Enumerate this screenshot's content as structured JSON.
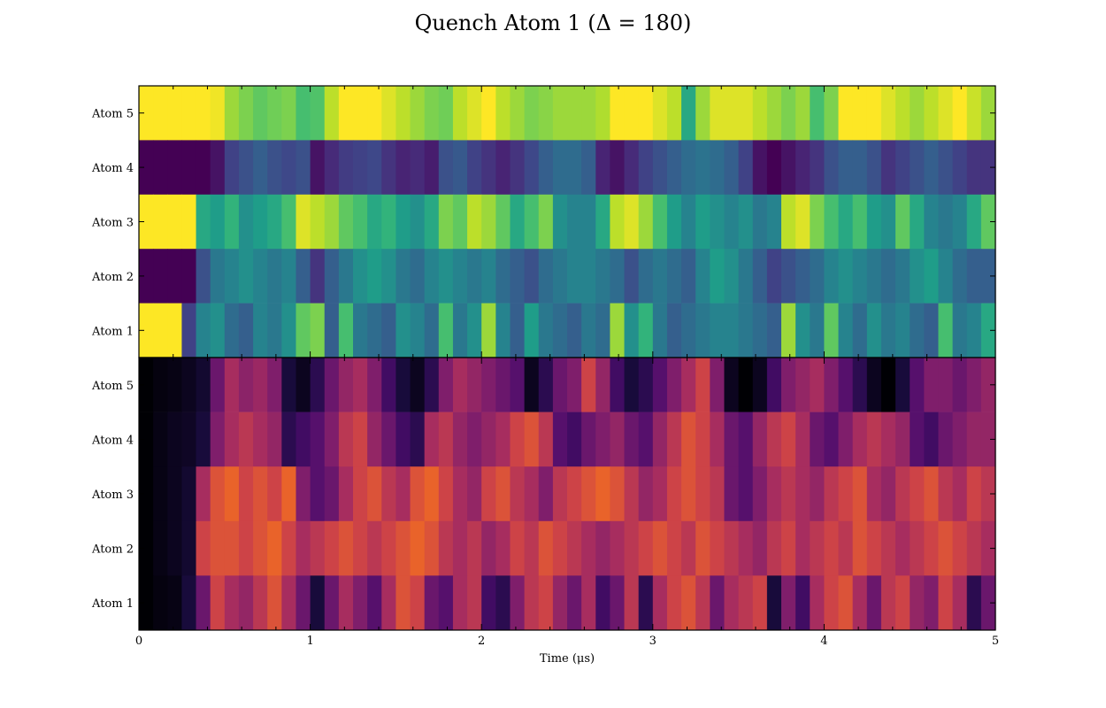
{
  "chart_data": {
    "type": "heatmap",
    "title": "Quench Atom 1 (Δ = 180)",
    "xlabel": "Time (μs)",
    "xlim": [
      0,
      5
    ],
    "xticks": [
      "0",
      "1",
      "2",
      "3",
      "4",
      "5"
    ],
    "panels": [
      {
        "name": "top",
        "colormap": "viridis",
        "rows": [
          {
            "label": "Atom 5",
            "values": [
              1.0,
              1.0,
              1.0,
              1.0,
              1.0,
              0.98,
              0.85,
              0.8,
              0.75,
              0.78,
              0.8,
              0.7,
              0.72,
              0.9,
              1.0,
              1.0,
              1.0,
              0.95,
              0.9,
              0.85,
              0.8,
              0.78,
              0.9,
              0.95,
              1.0,
              0.9,
              0.85,
              0.8,
              0.82,
              0.85,
              0.85,
              0.85,
              0.88,
              1.0,
              1.0,
              1.0,
              0.95,
              0.9,
              0.6,
              0.85,
              0.95,
              0.95,
              0.95,
              0.9,
              0.85,
              0.8,
              0.85,
              0.7,
              0.8,
              1.0,
              1.0,
              1.0,
              0.95,
              0.9,
              0.85,
              0.9,
              0.95,
              1.0,
              0.92,
              0.85
            ]
          },
          {
            "label": "Atom 4",
            "values": [
              0.0,
              0.0,
              0.0,
              0.0,
              0.0,
              0.05,
              0.2,
              0.25,
              0.3,
              0.25,
              0.22,
              0.25,
              0.05,
              0.12,
              0.18,
              0.2,
              0.22,
              0.15,
              0.1,
              0.12,
              0.08,
              0.25,
              0.28,
              0.2,
              0.15,
              0.1,
              0.15,
              0.22,
              0.3,
              0.35,
              0.35,
              0.3,
              0.1,
              0.05,
              0.12,
              0.2,
              0.25,
              0.3,
              0.35,
              0.38,
              0.35,
              0.3,
              0.2,
              0.05,
              0.0,
              0.05,
              0.1,
              0.15,
              0.25,
              0.3,
              0.3,
              0.25,
              0.15,
              0.2,
              0.25,
              0.3,
              0.25,
              0.2,
              0.15,
              0.15
            ]
          },
          {
            "label": "Atom 3",
            "values": [
              1.0,
              1.0,
              1.0,
              1.0,
              0.6,
              0.55,
              0.65,
              0.5,
              0.55,
              0.6,
              0.7,
              0.95,
              0.9,
              0.85,
              0.75,
              0.7,
              0.6,
              0.65,
              0.55,
              0.5,
              0.6,
              0.8,
              0.75,
              0.9,
              0.85,
              0.75,
              0.6,
              0.7,
              0.8,
              0.5,
              0.45,
              0.45,
              0.6,
              0.9,
              0.95,
              0.85,
              0.7,
              0.55,
              0.45,
              0.55,
              0.5,
              0.45,
              0.5,
              0.4,
              0.45,
              0.9,
              0.95,
              0.8,
              0.7,
              0.6,
              0.7,
              0.55,
              0.5,
              0.75,
              0.6,
              0.45,
              0.4,
              0.45,
              0.6,
              0.75
            ]
          },
          {
            "label": "Atom 2",
            "values": [
              0.0,
              0.0,
              0.0,
              0.0,
              0.25,
              0.4,
              0.45,
              0.5,
              0.45,
              0.4,
              0.45,
              0.3,
              0.15,
              0.3,
              0.4,
              0.5,
              0.55,
              0.5,
              0.4,
              0.35,
              0.45,
              0.5,
              0.45,
              0.4,
              0.45,
              0.35,
              0.3,
              0.25,
              0.35,
              0.4,
              0.45,
              0.45,
              0.4,
              0.35,
              0.25,
              0.35,
              0.4,
              0.35,
              0.3,
              0.45,
              0.55,
              0.5,
              0.4,
              0.3,
              0.2,
              0.25,
              0.3,
              0.35,
              0.45,
              0.5,
              0.45,
              0.4,
              0.35,
              0.4,
              0.5,
              0.55,
              0.45,
              0.35,
              0.3,
              0.3
            ]
          },
          {
            "label": "Atom 1",
            "values": [
              1.0,
              1.0,
              1.0,
              0.2,
              0.45,
              0.5,
              0.35,
              0.3,
              0.45,
              0.4,
              0.5,
              0.75,
              0.8,
              0.3,
              0.7,
              0.4,
              0.35,
              0.3,
              0.5,
              0.45,
              0.35,
              0.7,
              0.4,
              0.5,
              0.85,
              0.45,
              0.3,
              0.55,
              0.4,
              0.35,
              0.3,
              0.4,
              0.35,
              0.85,
              0.5,
              0.65,
              0.4,
              0.3,
              0.35,
              0.4,
              0.45,
              0.45,
              0.4,
              0.35,
              0.3,
              0.85,
              0.5,
              0.4,
              0.75,
              0.45,
              0.35,
              0.5,
              0.4,
              0.45,
              0.35,
              0.3,
              0.7,
              0.4,
              0.45,
              0.6
            ]
          }
        ]
      },
      {
        "name": "bottom",
        "colormap": "inferno",
        "rows": [
          {
            "label": "Atom 5",
            "values": [
              0.0,
              0.02,
              0.03,
              0.05,
              0.08,
              0.3,
              0.45,
              0.38,
              0.42,
              0.35,
              0.1,
              0.05,
              0.15,
              0.3,
              0.4,
              0.45,
              0.35,
              0.2,
              0.1,
              0.05,
              0.15,
              0.35,
              0.45,
              0.4,
              0.35,
              0.3,
              0.25,
              0.05,
              0.15,
              0.3,
              0.35,
              0.55,
              0.4,
              0.2,
              0.1,
              0.15,
              0.25,
              0.35,
              0.45,
              0.55,
              0.35,
              0.05,
              0.0,
              0.05,
              0.2,
              0.35,
              0.4,
              0.45,
              0.35,
              0.25,
              0.15,
              0.05,
              0.0,
              0.1,
              0.25,
              0.35,
              0.35,
              0.3,
              0.35,
              0.4
            ]
          },
          {
            "label": "Atom 4",
            "values": [
              0.0,
              0.03,
              0.05,
              0.06,
              0.1,
              0.35,
              0.45,
              0.5,
              0.45,
              0.4,
              0.15,
              0.2,
              0.25,
              0.35,
              0.5,
              0.55,
              0.4,
              0.3,
              0.2,
              0.15,
              0.45,
              0.5,
              0.4,
              0.35,
              0.4,
              0.45,
              0.55,
              0.6,
              0.5,
              0.25,
              0.2,
              0.3,
              0.35,
              0.4,
              0.3,
              0.25,
              0.4,
              0.5,
              0.6,
              0.55,
              0.45,
              0.3,
              0.25,
              0.4,
              0.5,
              0.55,
              0.45,
              0.3,
              0.25,
              0.35,
              0.45,
              0.5,
              0.45,
              0.4,
              0.25,
              0.2,
              0.3,
              0.35,
              0.4,
              0.4
            ]
          },
          {
            "label": "Atom 3",
            "values": [
              0.0,
              0.03,
              0.05,
              0.08,
              0.45,
              0.6,
              0.65,
              0.55,
              0.6,
              0.55,
              0.65,
              0.35,
              0.25,
              0.3,
              0.45,
              0.55,
              0.6,
              0.5,
              0.45,
              0.6,
              0.65,
              0.55,
              0.45,
              0.4,
              0.55,
              0.6,
              0.5,
              0.45,
              0.35,
              0.5,
              0.55,
              0.6,
              0.65,
              0.6,
              0.5,
              0.4,
              0.45,
              0.55,
              0.6,
              0.55,
              0.5,
              0.3,
              0.25,
              0.35,
              0.45,
              0.5,
              0.45,
              0.4,
              0.5,
              0.55,
              0.6,
              0.45,
              0.4,
              0.5,
              0.55,
              0.6,
              0.5,
              0.45,
              0.55,
              0.5
            ]
          },
          {
            "label": "Atom 2",
            "values": [
              0.0,
              0.03,
              0.05,
              0.08,
              0.55,
              0.6,
              0.6,
              0.55,
              0.6,
              0.65,
              0.55,
              0.45,
              0.5,
              0.55,
              0.6,
              0.55,
              0.5,
              0.55,
              0.6,
              0.65,
              0.6,
              0.5,
              0.45,
              0.5,
              0.4,
              0.45,
              0.55,
              0.5,
              0.6,
              0.55,
              0.5,
              0.45,
              0.4,
              0.45,
              0.5,
              0.55,
              0.6,
              0.55,
              0.5,
              0.6,
              0.55,
              0.5,
              0.45,
              0.4,
              0.5,
              0.55,
              0.45,
              0.5,
              0.55,
              0.5,
              0.6,
              0.55,
              0.5,
              0.45,
              0.5,
              0.55,
              0.6,
              0.55,
              0.5,
              0.45
            ]
          },
          {
            "label": "Atom 1",
            "values": [
              0.0,
              0.02,
              0.03,
              0.1,
              0.3,
              0.55,
              0.45,
              0.4,
              0.5,
              0.6,
              0.45,
              0.3,
              0.1,
              0.3,
              0.45,
              0.35,
              0.25,
              0.45,
              0.6,
              0.55,
              0.3,
              0.25,
              0.45,
              0.5,
              0.2,
              0.15,
              0.35,
              0.5,
              0.55,
              0.4,
              0.3,
              0.45,
              0.2,
              0.3,
              0.5,
              0.15,
              0.45,
              0.55,
              0.6,
              0.5,
              0.3,
              0.45,
              0.5,
              0.55,
              0.1,
              0.35,
              0.2,
              0.45,
              0.55,
              0.6,
              0.45,
              0.3,
              0.5,
              0.55,
              0.4,
              0.35,
              0.55,
              0.45,
              0.15,
              0.3
            ]
          }
        ]
      }
    ]
  }
}
